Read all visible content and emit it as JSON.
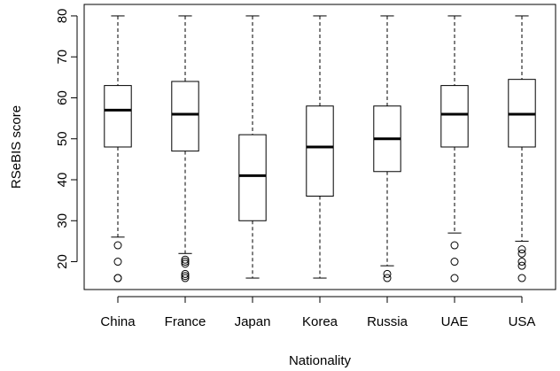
{
  "chart_data": {
    "type": "boxplot",
    "xlabel": "Nationality",
    "ylabel": "RSeBIS score",
    "ylim": [
      13.2,
      82.8
    ],
    "yticks": [
      20,
      30,
      40,
      50,
      60,
      70,
      80
    ],
    "categories": [
      "China",
      "France",
      "Japan",
      "Korea",
      "Russia",
      "UAE",
      "USA"
    ],
    "boxes": [
      {
        "category": "China",
        "whisker_low": 26,
        "q1": 48,
        "median": 57,
        "q3": 63,
        "whisker_high": 80,
        "outliers": [
          24,
          20,
          16,
          16
        ]
      },
      {
        "category": "France",
        "whisker_low": 22,
        "q1": 47,
        "median": 56,
        "q3": 64,
        "whisker_high": 80,
        "outliers": [
          20.5,
          20,
          19.5,
          17,
          16.5,
          16
        ]
      },
      {
        "category": "Japan",
        "whisker_low": 16,
        "q1": 30,
        "median": 41,
        "q3": 51,
        "whisker_high": 80,
        "outliers": []
      },
      {
        "category": "Korea",
        "whisker_low": 16,
        "q1": 36,
        "median": 48,
        "q3": 58,
        "whisker_high": 80,
        "outliers": []
      },
      {
        "category": "Russia",
        "whisker_low": 19,
        "q1": 42,
        "median": 50,
        "q3": 58,
        "whisker_high": 80,
        "outliers": [
          17,
          16
        ]
      },
      {
        "category": "UAE",
        "whisker_low": 27,
        "q1": 48,
        "median": 56,
        "q3": 63,
        "whisker_high": 80,
        "outliers": [
          24,
          20,
          16
        ]
      },
      {
        "category": "USA",
        "whisker_low": 25,
        "q1": 48,
        "median": 56,
        "q3": 64.5,
        "whisker_high": 80,
        "outliers": [
          23,
          22,
          20,
          19,
          16
        ]
      }
    ],
    "grid": false,
    "legend": "none"
  }
}
